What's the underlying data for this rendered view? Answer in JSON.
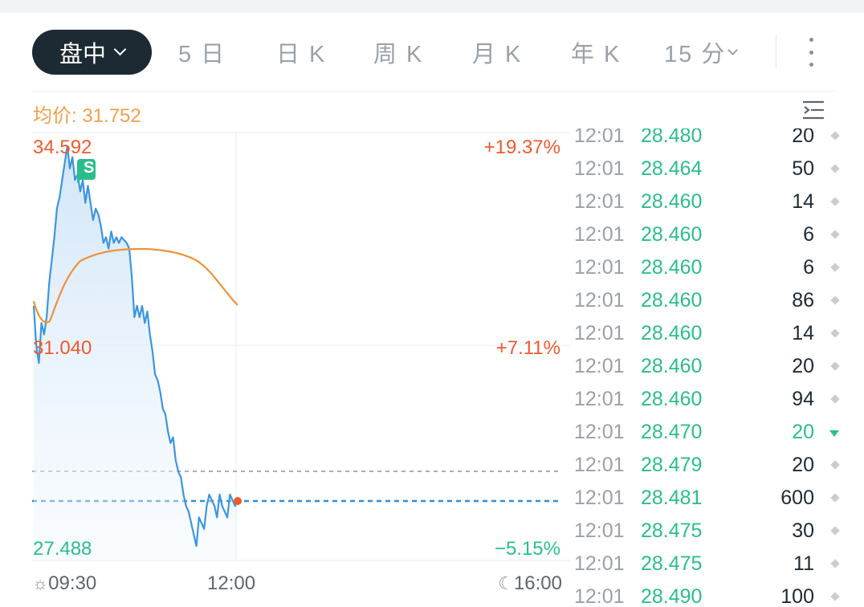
{
  "tabs": {
    "active": "盘中",
    "items": [
      "5 日",
      "日 K",
      "周 K",
      "月 K",
      "年 K",
      "15 分"
    ]
  },
  "avg_price_label": "均价: 31.752",
  "chart": {
    "price_high": "34.592",
    "price_mid": "31.040",
    "price_low": "27.488",
    "pct_high": "+19.37%",
    "pct_mid": "+7.11%",
    "pct_low": "−5.15%",
    "badge": "S",
    "time_start": "09:30",
    "time_mid": "12:00",
    "time_end": "16:00"
  },
  "chart_data": {
    "type": "line",
    "ylim": [
      27.488,
      34.592
    ],
    "series": [
      {
        "x": [
          0,
          2,
          4,
          6,
          8,
          10,
          12,
          14,
          16,
          18,
          20,
          22,
          24,
          26,
          28,
          30,
          32,
          34,
          36,
          38,
          40,
          42,
          44,
          46,
          48,
          50,
          52,
          54,
          56,
          58,
          60,
          62,
          64,
          66,
          68,
          70,
          72,
          74,
          76,
          78,
          80,
          82,
          84,
          86,
          88,
          90,
          92,
          94,
          96,
          98,
          100,
          102,
          104,
          106,
          108,
          110,
          112,
          114,
          116,
          118,
          120,
          122,
          124,
          126,
          128,
          130,
          132,
          134,
          136,
          138,
          140,
          142,
          144,
          146,
          148,
          150,
          152,
          154,
          156,
          158
        ],
        "values": [
          31.8,
          31.1,
          30.8,
          31.5,
          31.3,
          31.6,
          32.2,
          32.6,
          33.0,
          33.5,
          33.7,
          34.0,
          34.3,
          34.59,
          34.2,
          34.4,
          34.0,
          34.1,
          33.8,
          34.0,
          33.6,
          33.9,
          33.6,
          33.3,
          33.5,
          33.4,
          33.2,
          32.9,
          33.0,
          32.8,
          33.1,
          32.9,
          33.0,
          32.9,
          33.0,
          32.95,
          32.9,
          32.8,
          32.3,
          31.6,
          31.8,
          31.6,
          31.8,
          31.5,
          31.7,
          31.3,
          31.0,
          30.6,
          30.5,
          30.3,
          30.0,
          29.9,
          29.6,
          29.4,
          29.5,
          29.1,
          28.9,
          28.8,
          28.5,
          28.3,
          28.2,
          28.0,
          27.8,
          27.6,
          28.1,
          28.0,
          27.9,
          28.3,
          28.5,
          28.4,
          28.3,
          28.1,
          28.5,
          28.3,
          28.2,
          28.1,
          28.5,
          28.4,
          28.3,
          28.45
        ]
      }
    ]
  },
  "trades": [
    {
      "time": "12:01",
      "price": "28.480",
      "vol": "20",
      "dir": "flat"
    },
    {
      "time": "12:01",
      "price": "28.464",
      "vol": "50",
      "dir": "flat"
    },
    {
      "time": "12:01",
      "price": "28.460",
      "vol": "14",
      "dir": "flat"
    },
    {
      "time": "12:01",
      "price": "28.460",
      "vol": "6",
      "dir": "flat"
    },
    {
      "time": "12:01",
      "price": "28.460",
      "vol": "6",
      "dir": "flat"
    },
    {
      "time": "12:01",
      "price": "28.460",
      "vol": "86",
      "dir": "flat"
    },
    {
      "time": "12:01",
      "price": "28.460",
      "vol": "14",
      "dir": "flat"
    },
    {
      "time": "12:01",
      "price": "28.460",
      "vol": "20",
      "dir": "flat"
    },
    {
      "time": "12:01",
      "price": "28.460",
      "vol": "94",
      "dir": "flat"
    },
    {
      "time": "12:01",
      "price": "28.470",
      "vol": "20",
      "dir": "down"
    },
    {
      "time": "12:01",
      "price": "28.479",
      "vol": "20",
      "dir": "flat"
    },
    {
      "time": "12:01",
      "price": "28.481",
      "vol": "600",
      "dir": "flat"
    },
    {
      "time": "12:01",
      "price": "28.475",
      "vol": "30",
      "dir": "flat"
    },
    {
      "time": "12:01",
      "price": "28.475",
      "vol": "11",
      "dir": "flat"
    },
    {
      "time": "12:01",
      "price": "28.490",
      "vol": "100",
      "dir": "flat"
    }
  ],
  "colors": {
    "price_line": "#3d95e0",
    "avg_line": "#ee9237",
    "up": "#ef5a2c",
    "down": "#2bbd8c",
    "dark": "#1e2a33"
  }
}
